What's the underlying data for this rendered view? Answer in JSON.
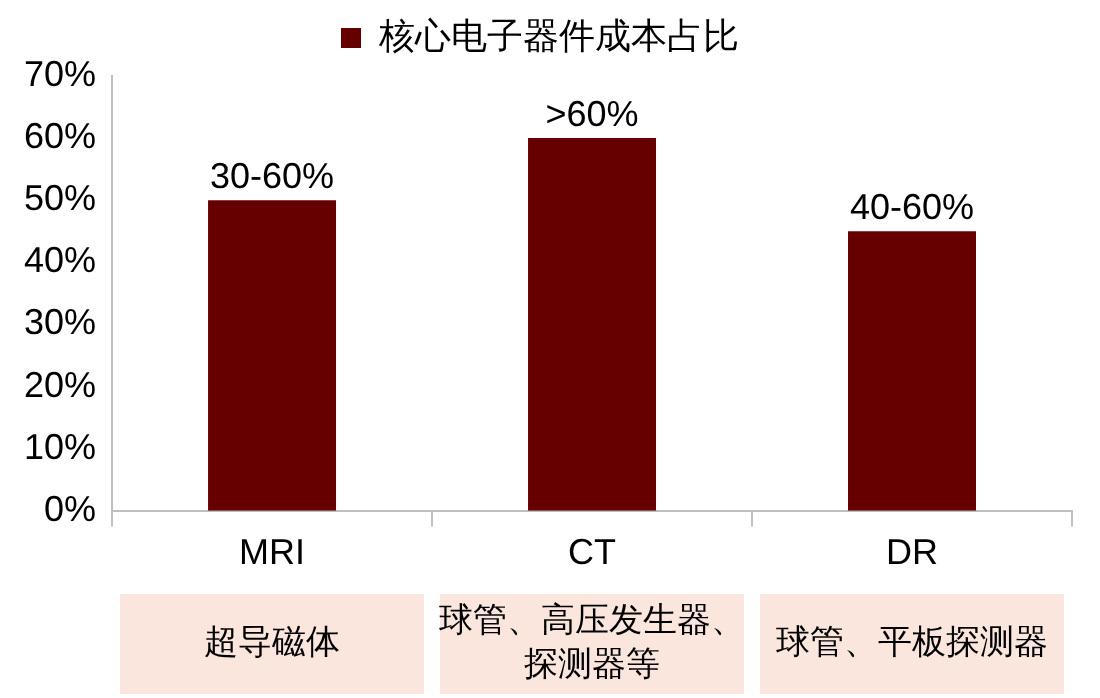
{
  "chart_data": {
    "type": "bar",
    "categories": [
      "MRI",
      "CT",
      "DR"
    ],
    "series": [
      {
        "name": "核心电子器件成本占比",
        "color": "#660000",
        "values": [
          50,
          60,
          45
        ]
      }
    ],
    "ylim": [
      0,
      70
    ],
    "yticks": [
      {
        "value": 0,
        "label": "0%"
      },
      {
        "value": 10,
        "label": "10%"
      },
      {
        "value": 20,
        "label": "20%"
      },
      {
        "value": 30,
        "label": "30%"
      },
      {
        "value": 40,
        "label": "40%"
      },
      {
        "value": 50,
        "label": "50%"
      },
      {
        "value": 60,
        "label": "60%"
      },
      {
        "value": 70,
        "label": "70%"
      }
    ],
    "grid": false,
    "legend": "top",
    "annotations": [
      {
        "text": "30-60%",
        "x": "MRI",
        "y": 50
      },
      {
        "text": ">60%",
        "x": "CT",
        "y": 60
      },
      {
        "text": "40-60%",
        "x": "DR",
        "y": 45
      },
      "超导磁体",
      "球管、高压发生器、探测器等",
      "球管、平板探测器"
    ]
  }
}
